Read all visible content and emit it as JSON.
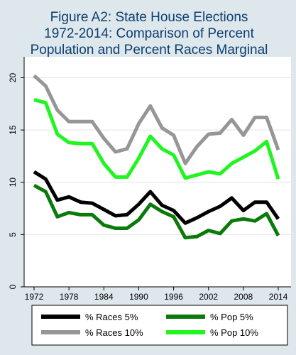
{
  "chart_data": {
    "type": "line",
    "title": [
      "Figure A2: State House Elections",
      "1972-2014: Comparison of Percent",
      "Population and Percent Races Marginal"
    ],
    "x": [
      1972,
      1974,
      1976,
      1978,
      1980,
      1982,
      1984,
      1986,
      1988,
      1990,
      1992,
      1994,
      1996,
      1998,
      2000,
      2002,
      2004,
      2006,
      2008,
      2010,
      2012,
      2014
    ],
    "xticks": [
      "1972",
      "1978",
      "1984",
      "1990",
      "1996",
      "2002",
      "2008",
      "2014"
    ],
    "yticks": [
      "0",
      "5",
      "10",
      "15",
      "20"
    ],
    "xlim": [
      1972,
      2014
    ],
    "ylim": [
      0,
      22
    ],
    "grid": "horizontal",
    "legend_position": "bottom",
    "series": [
      {
        "name": "% Races 5%",
        "color": "#000000",
        "values": [
          11.0,
          10.3,
          8.3,
          8.6,
          8.1,
          8.0,
          7.4,
          6.8,
          6.9,
          7.9,
          9.1,
          7.8,
          7.3,
          6.1,
          6.6,
          7.2,
          7.7,
          8.5,
          7.3,
          8.1,
          8.1,
          6.5
        ]
      },
      {
        "name": "% Pop 5%",
        "color": "#0a7a0a",
        "values": [
          9.7,
          9.1,
          6.7,
          7.1,
          6.9,
          6.9,
          5.9,
          5.6,
          5.6,
          6.4,
          7.9,
          7.2,
          6.7,
          4.7,
          4.8,
          5.4,
          5.1,
          6.3,
          6.5,
          6.3,
          7.0,
          4.9
        ]
      },
      {
        "name": "% Races 10%",
        "color": "#969696",
        "values": [
          20.2,
          19.2,
          16.9,
          15.8,
          15.8,
          15.8,
          14.2,
          12.9,
          13.2,
          15.6,
          17.3,
          15.2,
          14.5,
          11.8,
          13.4,
          14.6,
          14.7,
          16.0,
          14.5,
          16.2,
          16.2,
          13.1
        ]
      },
      {
        "name": "% Pop 10%",
        "color": "#20f520",
        "values": [
          17.9,
          17.6,
          14.6,
          13.8,
          13.7,
          13.7,
          11.8,
          10.5,
          10.5,
          12.3,
          14.4,
          13.2,
          12.6,
          10.4,
          10.7,
          11.0,
          10.8,
          11.8,
          12.4,
          13.0,
          13.9,
          10.3
        ]
      }
    ]
  }
}
